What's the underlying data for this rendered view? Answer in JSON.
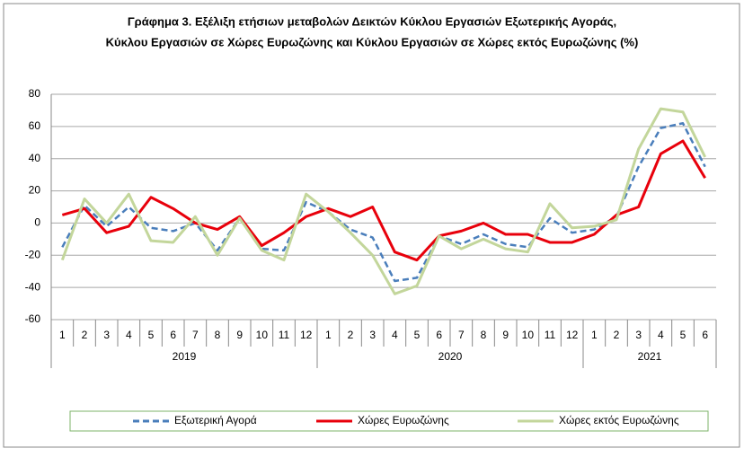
{
  "chart_data": {
    "type": "line",
    "title": [
      "Γράφημα 3. Εξέλιξη  ετήσιων μεταβολών Δεικτών Κύκλου Εργασιών Εξωτερικής Αγοράς,",
      "Κύκλου Εργασιών σε Χώρες Ευρωζώνης και Κύκλου Εργασιών σε Χώρες εκτός Ευρωζώνης (%)"
    ],
    "categories": [
      "1",
      "2",
      "3",
      "4",
      "5",
      "6",
      "7",
      "8",
      "9",
      "10",
      "11",
      "12",
      "1",
      "2",
      "3",
      "4",
      "5",
      "6",
      "7",
      "8",
      "9",
      "10",
      "11",
      "12",
      "1",
      "2",
      "3",
      "4",
      "5",
      "6"
    ],
    "year_groups": [
      {
        "label": "2019",
        "count": 12
      },
      {
        "label": "2020",
        "count": 12
      },
      {
        "label": "2021",
        "count": 6
      }
    ],
    "ylim": [
      -60,
      80
    ],
    "yticks": [
      -60,
      -40,
      -20,
      0,
      20,
      40,
      60,
      80
    ],
    "grid": true,
    "series": [
      {
        "name": "Εξωτερική Αγορά",
        "color": "#4a7ebb",
        "dashed": true,
        "values": [
          -15,
          11,
          -2,
          10,
          -3,
          -5,
          0,
          -17,
          3,
          -16,
          -17,
          13,
          7,
          -4,
          -9,
          -36,
          -34,
          -8,
          -13,
          -7,
          -13,
          -15,
          3,
          -6,
          -4,
          4,
          35,
          59,
          62,
          35
        ]
      },
      {
        "name": "Χώρες Ευρωζώνης",
        "color": "#e8000b",
        "dashed": false,
        "values": [
          5,
          9,
          -6,
          -2,
          16,
          9,
          0,
          -4,
          4,
          -14,
          -6,
          4,
          9,
          4,
          10,
          -18,
          -23,
          -8,
          -5,
          0,
          -7,
          -7,
          -12,
          -12,
          -7,
          5,
          10,
          43,
          51,
          28
        ]
      },
      {
        "name": "Χώρες εκτός Ευρωζώνης",
        "color": "#c3d69b",
        "dashed": false,
        "values": [
          -23,
          15,
          0,
          18,
          -11,
          -12,
          4,
          -20,
          3,
          -17,
          -23,
          18,
          7,
          -6,
          -20,
          -44,
          -39,
          -8,
          -16,
          -10,
          -16,
          -18,
          12,
          -3,
          -2,
          2,
          46,
          71,
          69,
          41
        ]
      }
    ]
  }
}
